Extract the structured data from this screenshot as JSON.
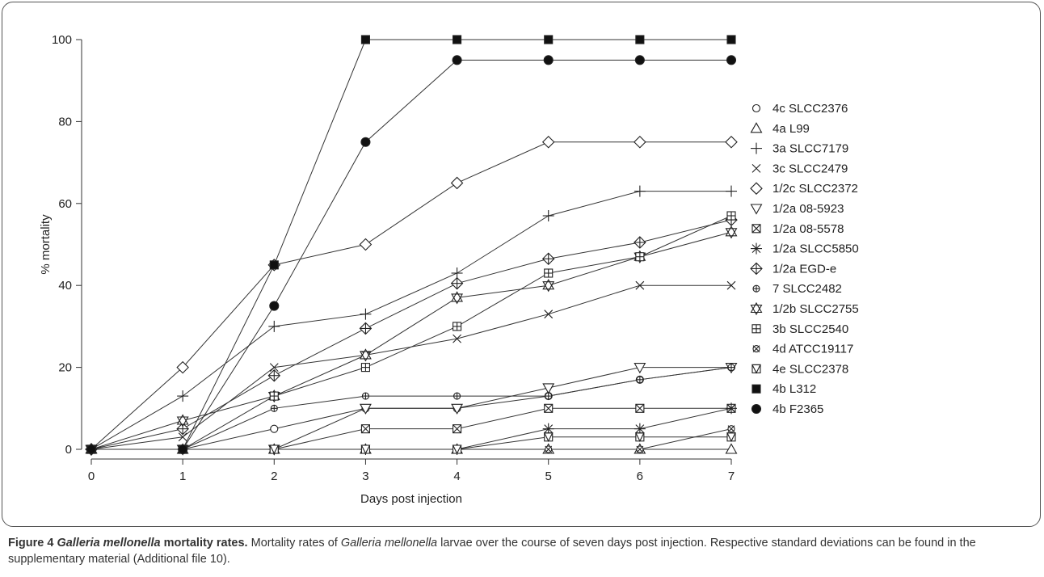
{
  "chart_data": {
    "type": "line",
    "title": "",
    "xlabel": "Days post injection",
    "ylabel": "% mortality",
    "xlim": [
      0,
      7
    ],
    "ylim": [
      0,
      100
    ],
    "x": [
      0,
      1,
      2,
      3,
      4,
      5,
      6,
      7
    ],
    "xticks": [
      "0",
      "1",
      "2",
      "3",
      "4",
      "5",
      "6",
      "7"
    ],
    "yticks": [
      "0",
      "20",
      "40",
      "60",
      "80",
      "100"
    ],
    "grid": false,
    "legend_position": "right",
    "series": [
      {
        "name": "4c SLCC2376",
        "marker": "circle",
        "values": [
          0,
          0,
          5,
          10,
          10,
          13,
          17,
          20
        ]
      },
      {
        "name": "4a L99",
        "marker": "triangle-up",
        "values": [
          0,
          0,
          0,
          0,
          0,
          0,
          0,
          0
        ]
      },
      {
        "name": "3a SLCC7179",
        "marker": "plus",
        "values": [
          0,
          13,
          30,
          33,
          43,
          57,
          63,
          63
        ]
      },
      {
        "name": "3c SLCC2479",
        "marker": "x",
        "values": [
          0,
          3,
          20,
          23,
          27,
          33,
          40,
          40
        ]
      },
      {
        "name": "1/2c SLCC2372",
        "marker": "diamond",
        "values": [
          0,
          20,
          45,
          50,
          65,
          75,
          75,
          75
        ]
      },
      {
        "name": "1/2a 08-5923",
        "marker": "triangle-down",
        "values": [
          0,
          0,
          0,
          10,
          10,
          15,
          20,
          20
        ]
      },
      {
        "name": "1/2a 08-5578",
        "marker": "square-x",
        "values": [
          0,
          0,
          0,
          5,
          5,
          10,
          10,
          10
        ]
      },
      {
        "name": "1/2a SLCC5850",
        "marker": "asterisk",
        "values": [
          0,
          0,
          0,
          0,
          0,
          5,
          5,
          10
        ]
      },
      {
        "name": "1/2a EGD-e",
        "marker": "diamond-plus",
        "values": [
          0,
          5,
          18,
          29.5,
          40.5,
          46.5,
          50.5,
          56
        ]
      },
      {
        "name": "7 SLCC2482",
        "marker": "circle-plus",
        "values": [
          0,
          0,
          10,
          13,
          13,
          13,
          17,
          20
        ]
      },
      {
        "name": "1/2b SLCC2755",
        "marker": "star-of-david",
        "values": [
          0,
          7,
          13,
          23,
          37,
          40,
          47,
          53
        ]
      },
      {
        "name": "3b SLCC2540",
        "marker": "square-plus",
        "values": [
          0,
          0,
          13,
          20,
          30,
          43,
          47,
          57
        ]
      },
      {
        "name": "4d ATCC19117",
        "marker": "circle-x",
        "values": [
          0,
          0,
          0,
          0,
          0,
          0,
          0,
          5
        ]
      },
      {
        "name": "4e SLCC2378",
        "marker": "square-triangle",
        "values": [
          0,
          0,
          0,
          0,
          0,
          3,
          3,
          3
        ]
      },
      {
        "name": "4b L312",
        "marker": "filled-square",
        "values": [
          0,
          0,
          45,
          100,
          100,
          100,
          100,
          100
        ]
      },
      {
        "name": "4b F2365",
        "marker": "filled-octagon",
        "values": [
          0,
          0,
          35,
          75,
          95,
          95,
          95,
          95
        ]
      }
    ]
  },
  "caption": {
    "label": "Figure 4",
    "species_title": "Galleria mellonella",
    "title_rest": "mortality rates.",
    "text_1": "Mortality rates of",
    "species": "Galleria mellonella",
    "text_2": "larvae over the course of seven days post injection. Respective standard deviations can be found in the supplementary material (Additional file 10)."
  }
}
